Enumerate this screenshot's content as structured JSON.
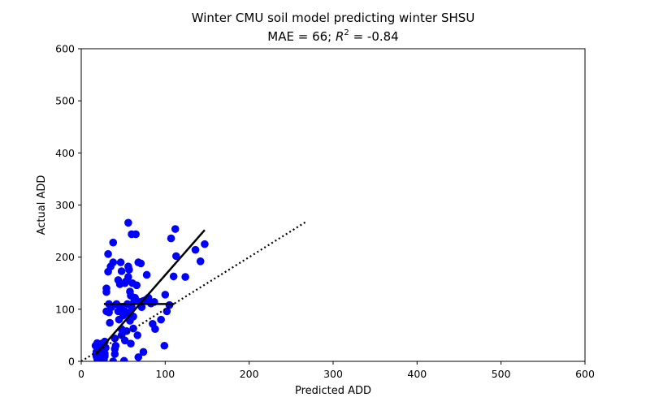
{
  "chart_data": {
    "type": "scatter",
    "title": "Winter CMU soil model predicting winter SHSU",
    "subtitle": {
      "prefix": "MAE = 66; ",
      "r_symbol": "R",
      "r_exponent": "2",
      "suffix": " = -0.84"
    },
    "xlabel": "Predicted ADD",
    "ylabel": "Actual ADD",
    "xlim": [
      0,
      600
    ],
    "ylim": [
      0,
      600
    ],
    "xticks": [
      0,
      100,
      200,
      300,
      400,
      500,
      600
    ],
    "yticks": [
      0,
      100,
      200,
      300,
      400,
      500,
      600
    ],
    "grid": false,
    "legend": "none",
    "colors": {
      "points": "#0000ff",
      "fit_line": "#000000",
      "hline": "#000000",
      "one_to_one": "#000000"
    },
    "series": [
      {
        "type": "scatter",
        "points": [
          [
            17,
            30
          ],
          [
            18,
            18
          ],
          [
            18,
            10
          ],
          [
            19,
            5
          ],
          [
            19,
            35
          ],
          [
            20,
            25
          ],
          [
            20,
            12
          ],
          [
            21,
            2
          ],
          [
            22,
            28
          ],
          [
            23,
            20
          ],
          [
            24,
            34
          ],
          [
            24,
            8
          ],
          [
            25,
            14
          ],
          [
            25,
            22
          ],
          [
            26,
            30
          ],
          [
            27,
            4
          ],
          [
            27,
            18
          ],
          [
            28,
            10
          ],
          [
            28,
            38
          ],
          [
            28,
            15
          ],
          [
            29,
            26
          ],
          [
            30,
            96
          ],
          [
            30,
            140
          ],
          [
            30,
            133
          ],
          [
            32,
            206
          ],
          [
            32,
            172
          ],
          [
            33,
            110
          ],
          [
            33,
            94
          ],
          [
            34,
            74
          ],
          [
            35,
            182
          ],
          [
            36,
            104
          ],
          [
            38,
            190
          ],
          [
            38,
            228
          ],
          [
            38,
            0
          ],
          [
            40,
            44
          ],
          [
            40,
            24
          ],
          [
            40,
            14
          ],
          [
            41,
            30
          ],
          [
            42,
            110
          ],
          [
            44,
            156
          ],
          [
            44,
            96
          ],
          [
            45,
            80
          ],
          [
            46,
            148
          ],
          [
            47,
            190
          ],
          [
            48,
            173
          ],
          [
            48,
            104
          ],
          [
            48,
            50
          ],
          [
            48,
            62
          ],
          [
            50,
            88
          ],
          [
            51,
            1
          ],
          [
            52,
            96
          ],
          [
            52,
            150
          ],
          [
            52,
            40
          ],
          [
            53,
            153
          ],
          [
            54,
            58
          ],
          [
            55,
            110
          ],
          [
            56,
            182
          ],
          [
            56,
            266
          ],
          [
            56,
            162
          ],
          [
            57,
            176
          ],
          [
            57,
            92
          ],
          [
            58,
            134
          ],
          [
            58,
            78
          ],
          [
            59,
            126
          ],
          [
            59,
            34
          ],
          [
            60,
            244
          ],
          [
            60,
            104
          ],
          [
            61,
            150
          ],
          [
            62,
            63
          ],
          [
            62,
            86
          ],
          [
            63,
            115
          ],
          [
            64,
            122
          ],
          [
            65,
            244
          ],
          [
            66,
            146
          ],
          [
            67,
            50
          ],
          [
            68,
            8
          ],
          [
            68,
            190
          ],
          [
            70,
            114
          ],
          [
            71,
            188
          ],
          [
            72,
            104
          ],
          [
            74,
            116
          ],
          [
            74,
            18
          ],
          [
            77,
            118
          ],
          [
            78,
            166
          ],
          [
            80,
            122
          ],
          [
            83,
            111
          ],
          [
            85,
            72
          ],
          [
            87,
            114
          ],
          [
            88,
            62
          ],
          [
            95,
            80
          ],
          [
            99,
            30
          ],
          [
            100,
            128
          ],
          [
            102,
            96
          ],
          [
            105,
            108
          ],
          [
            107,
            236
          ],
          [
            110,
            163
          ],
          [
            112,
            254
          ],
          [
            113,
            202
          ],
          [
            124,
            162
          ],
          [
            136,
            214
          ],
          [
            142,
            192
          ],
          [
            147,
            225
          ]
        ]
      }
    ],
    "fit_line": {
      "x": [
        17,
        147
      ],
      "y": [
        13,
        252
      ]
    },
    "horizontal_line": {
      "x": [
        27,
        111
      ],
      "y": 110
    },
    "one_to_one_line": {
      "x": [
        0,
        267
      ],
      "y": [
        0,
        267
      ],
      "style": "dotted"
    }
  }
}
